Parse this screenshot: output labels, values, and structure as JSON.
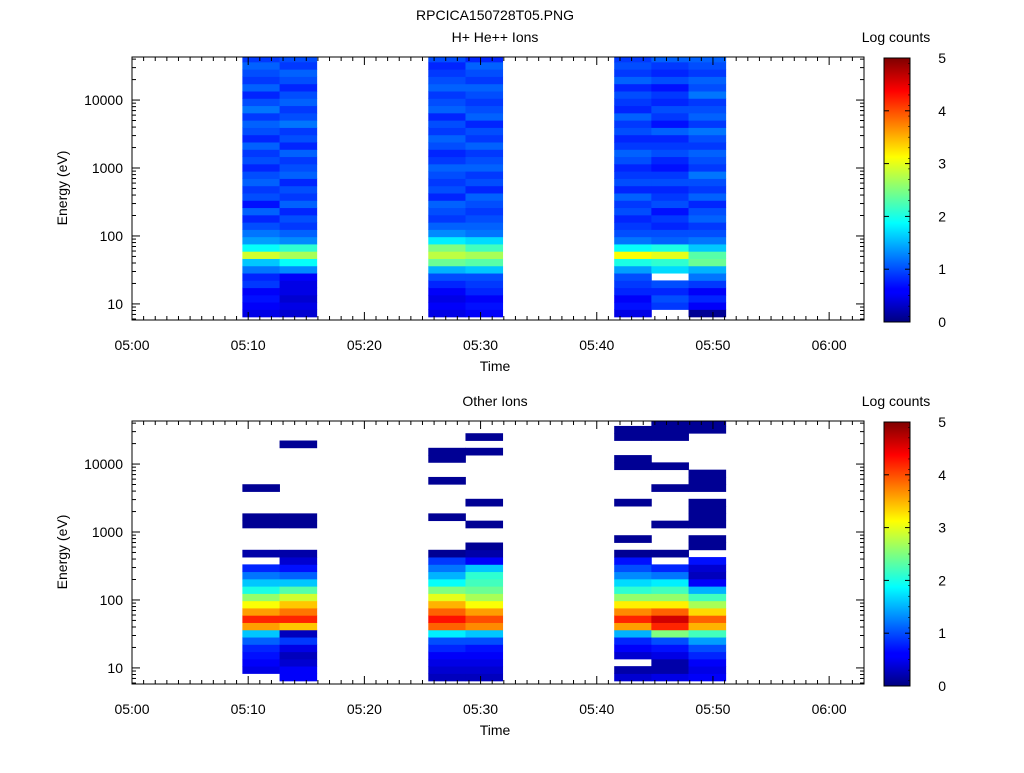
{
  "figure_title": "RPCICA150728T05.PNG",
  "colors": {
    "colormap": "jet",
    "low": "#00007f",
    "mid": "#7fff7f",
    "high": "#7f0000",
    "frame": "#000000",
    "background": "#ffffff"
  },
  "chart_data": [
    {
      "type": "heatmap",
      "title": "H+ He++ Ions",
      "xlabel": "Time",
      "ylabel": "Energy (eV)",
      "yscale": "log",
      "ylim": [
        5.8,
        43000
      ],
      "xlim": [
        "05:00",
        "06:03"
      ],
      "xticks": [
        "05:00",
        "05:10",
        "05:20",
        "05:30",
        "05:40",
        "05:50",
        "06:00"
      ],
      "yticks": [
        "10",
        "100",
        "1000",
        "10000"
      ],
      "colorbar": {
        "label": "Log counts",
        "range": [
          0,
          5
        ],
        "ticks": [
          "0",
          "1",
          "2",
          "3",
          "4",
          "5"
        ]
      },
      "energy_bins": [
        7.3,
        9.4,
        12.0,
        15.3,
        19.6,
        25.1,
        32.1,
        41.1,
        52.6,
        67.3,
        86.1,
        110,
        141,
        180,
        231,
        295,
        378,
        484,
        619,
        793,
        1015,
        1299,
        1662,
        2127,
        2723,
        3485,
        4461,
        5711,
        7310,
        9357,
        11977,
        15330,
        19623,
        25118,
        32150,
        41152
      ],
      "columns": [
        {
          "t_start": "05:09.5",
          "t_end": "05:12.7",
          "counts": [
            0.5,
            0.6,
            0.7,
            0.6,
            0.9,
            0.8,
            1.2,
            1.6,
            2.9,
            1.9,
            1.4,
            1.2,
            1.0,
            0.8,
            1.1,
            0.7,
            1.0,
            0.9,
            1.1,
            1.0,
            0.8,
            1.0,
            0.9,
            1.1,
            0.8,
            1.0,
            1.1,
            0.9,
            1.2,
            1.0,
            0.8,
            1.1,
            0.9,
            1.0,
            1.1,
            0.9
          ]
        },
        {
          "t_start": "05:12.7",
          "t_end": "05:15.9",
          "counts": [
            0.4,
            0.5,
            0.4,
            0.5,
            0.5,
            0.6,
            1.3,
            1.9,
            2.7,
            2.1,
            1.3,
            1.1,
            0.9,
            1.0,
            0.8,
            1.1,
            0.9,
            1.0,
            0.8,
            1.1,
            1.0,
            0.9,
            1.1,
            0.8,
            1.0,
            0.9,
            1.2,
            1.0,
            0.9,
            1.1,
            1.0,
            0.8,
            1.0,
            1.1,
            0.9,
            1.0
          ]
        },
        {
          "t_start": "05:25.5",
          "t_end": "05:28.7",
          "counts": [
            0.5,
            0.6,
            0.5,
            0.6,
            0.8,
            1.0,
            1.5,
            2.4,
            2.8,
            2.5,
            1.8,
            1.3,
            1.1,
            0.9,
            1.0,
            1.1,
            0.8,
            1.0,
            0.9,
            1.0,
            1.1,
            0.9,
            0.8,
            1.0,
            1.1,
            0.9,
            1.0,
            0.8,
            1.1,
            1.0,
            0.9,
            1.1,
            1.0,
            0.9,
            0.8,
            1.0
          ]
        },
        {
          "t_start": "05:28.7",
          "t_end": "05:31.9",
          "counts": [
            0.6,
            0.7,
            0.6,
            0.8,
            0.9,
            1.0,
            1.6,
            2.3,
            2.7,
            2.2,
            1.7,
            1.2,
            1.1,
            1.0,
            0.9,
            1.0,
            1.1,
            0.8,
            1.0,
            0.9,
            1.1,
            1.0,
            0.9,
            1.1,
            0.9,
            1.0,
            0.8,
            1.1,
            1.0,
            0.9,
            1.0,
            1.1,
            0.9,
            1.0,
            1.1,
            0.8
          ]
        },
        {
          "t_start": "05:41.5",
          "t_end": "05:44.7",
          "counts": [
            0.5,
            0.7,
            0.6,
            0.8,
            0.9,
            1.0,
            1.4,
            2.0,
            3.1,
            1.9,
            1.2,
            1.0,
            0.9,
            0.8,
            1.0,
            0.9,
            1.1,
            0.8,
            1.0,
            0.9,
            0.8,
            1.0,
            1.1,
            0.9,
            0.8,
            1.0,
            0.9,
            1.1,
            0.8,
            0.9,
            1.0,
            0.8,
            1.1,
            0.9,
            1.0,
            0.9
          ]
        },
        {
          "t_start": "05:44.7",
          "t_end": "05:47.9",
          "counts": [
            null,
            0.9,
            1.0,
            0.8,
            1.0,
            null,
            1.7,
            2.1,
            3.0,
            2.0,
            1.1,
            1.0,
            0.8,
            0.9,
            0.7,
            1.0,
            0.9,
            0.8,
            1.0,
            0.9,
            0.7,
            0.8,
            1.0,
            0.9,
            0.8,
            1.1,
            0.7,
            0.9,
            1.0,
            0.8,
            0.9,
            0.7,
            1.0,
            0.8,
            0.9,
            1.1
          ]
        },
        {
          "t_start": "05:47.9",
          "t_end": "05:51.1",
          "counts": [
            0.1,
            0.6,
            0.8,
            0.6,
            0.9,
            1.2,
            1.5,
            2.4,
            2.3,
            1.6,
            1.2,
            1.0,
            0.9,
            1.1,
            1.0,
            0.8,
            1.1,
            0.9,
            1.0,
            1.2,
            0.9,
            1.0,
            1.1,
            0.9,
            1.0,
            1.2,
            0.9,
            1.1,
            1.0,
            0.9,
            1.2,
            1.0,
            1.1,
            0.9,
            1.0,
            1.1
          ]
        }
      ]
    },
    {
      "type": "heatmap",
      "title": "Other Ions",
      "xlabel": "Time",
      "ylabel": "Energy (eV)",
      "yscale": "log",
      "ylim": [
        5.8,
        43000
      ],
      "xlim": [
        "05:00",
        "06:03"
      ],
      "xticks": [
        "05:00",
        "05:10",
        "05:20",
        "05:30",
        "05:40",
        "05:50",
        "06:00"
      ],
      "yticks": [
        "10",
        "100",
        "1000",
        "10000"
      ],
      "colorbar": {
        "label": "Log counts",
        "range": [
          0,
          5
        ],
        "ticks": [
          "0",
          "1",
          "2",
          "3",
          "4",
          "5"
        ]
      },
      "energy_bins": [
        7.3,
        9.4,
        12.0,
        15.3,
        19.6,
        25.1,
        32.1,
        41.1,
        52.6,
        67.3,
        86.1,
        110,
        141,
        180,
        231,
        295,
        378,
        484,
        619,
        793,
        1015,
        1299,
        1662,
        2127,
        2723,
        3485,
        4461,
        5711,
        7310,
        9357,
        11977,
        15330,
        19623,
        25118,
        32150,
        41152
      ],
      "columns": [
        {
          "t_start": "05:09.5",
          "t_end": "05:12.7",
          "counts": [
            null,
            0.5,
            0.6,
            0.7,
            0.8,
            1.1,
            1.6,
            3.6,
            4.2,
            3.6,
            3.1,
            2.6,
            2.0,
            1.6,
            1.2,
            0.8,
            null,
            0.2,
            null,
            null,
            null,
            0.1,
            0.1,
            null,
            null,
            null,
            0.1,
            null,
            null,
            null,
            null,
            null,
            null,
            null,
            null,
            null
          ]
        },
        {
          "t_start": "05:12.7",
          "t_end": "05:15.9",
          "counts": [
            0.6,
            0.6,
            0.4,
            0.3,
            0.5,
            0.9,
            0.3,
            3.4,
            4.2,
            3.8,
            3.4,
            2.9,
            2.3,
            1.6,
            1.1,
            0.7,
            0.4,
            0.2,
            null,
            null,
            null,
            0.1,
            0.1,
            null,
            null,
            null,
            null,
            null,
            null,
            null,
            null,
            null,
            0.1,
            null,
            null,
            null
          ]
        },
        {
          "t_start": "05:25.5",
          "t_end": "05:28.7",
          "counts": [
            0.3,
            0.4,
            0.5,
            0.6,
            0.8,
            1.0,
            1.8,
            3.9,
            4.3,
            3.9,
            3.5,
            3.0,
            2.5,
            1.9,
            1.5,
            1.2,
            0.9,
            0.1,
            null,
            null,
            null,
            null,
            0.1,
            null,
            null,
            null,
            null,
            0.1,
            null,
            null,
            0.1,
            0.1,
            null,
            null,
            null,
            null
          ]
        },
        {
          "t_start": "05:28.7",
          "t_end": "05:31.9",
          "counts": [
            0.3,
            0.4,
            0.5,
            0.6,
            0.7,
            1.0,
            1.6,
            3.7,
            4.0,
            3.6,
            3.1,
            2.7,
            2.4,
            2.2,
            2.1,
            1.6,
            0.6,
            0.2,
            0.1,
            null,
            null,
            0.1,
            null,
            null,
            0.1,
            null,
            null,
            null,
            null,
            null,
            null,
            0.1,
            null,
            0.1,
            null,
            null
          ]
        },
        {
          "t_start": "05:41.5",
          "t_end": "05:44.7",
          "counts": [
            0.4,
            0.2,
            null,
            0.4,
            0.6,
            0.8,
            1.5,
            3.6,
            4.2,
            3.7,
            3.2,
            2.6,
            2.1,
            1.7,
            1.3,
            1.0,
            0.7,
            0.1,
            null,
            0.1,
            null,
            null,
            null,
            null,
            0.1,
            null,
            null,
            null,
            null,
            0.1,
            0.1,
            null,
            null,
            0.1,
            0.1,
            null
          ]
        },
        {
          "t_start": "05:44.7",
          "t_end": "05:47.9",
          "counts": [
            0.5,
            0.2,
            0.2,
            0.5,
            0.7,
            1.0,
            2.5,
            4.2,
            4.6,
            3.9,
            3.2,
            2.6,
            2.2,
            1.8,
            1.2,
            0.8,
            null,
            0.1,
            null,
            null,
            null,
            0.1,
            null,
            null,
            null,
            null,
            0.1,
            null,
            null,
            0.1,
            null,
            null,
            null,
            0.1,
            0.1,
            0.1
          ]
        },
        {
          "t_start": "05:47.9",
          "t_end": "05:51.1",
          "counts": [
            0.6,
            0.5,
            0.6,
            0.8,
            1.0,
            1.4,
            2.2,
            3.5,
            3.9,
            3.3,
            2.7,
            2.2,
            1.5,
            0.6,
            0.3,
            0.4,
            0.7,
            null,
            0.1,
            0.1,
            null,
            0.1,
            0.1,
            0.1,
            0.1,
            null,
            0.1,
            0.1,
            0.1,
            null,
            null,
            null,
            null,
            null,
            0.1,
            0.1
          ]
        }
      ]
    }
  ]
}
